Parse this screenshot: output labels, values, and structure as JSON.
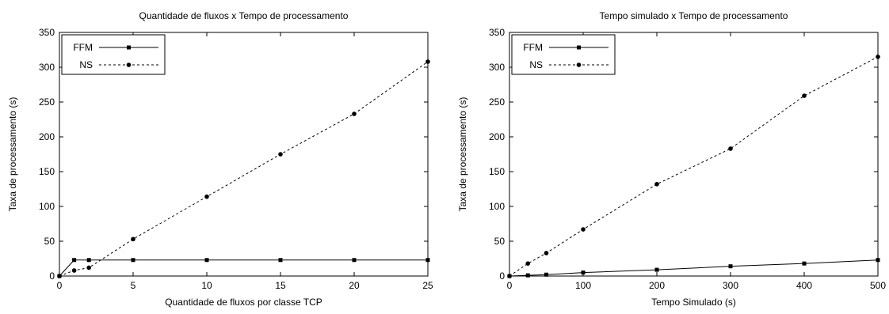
{
  "chart_data": [
    {
      "type": "line",
      "title": "Quantidade de fluxos x Tempo de processamento",
      "xlabel": "Quantidade de fluxos por classe TCP",
      "ylabel": "Taxa de processamento (s)",
      "xlim": [
        0,
        25
      ],
      "ylim": [
        0,
        350
      ],
      "xticks": [
        0,
        5,
        10,
        15,
        20,
        25
      ],
      "yticks": [
        0,
        50,
        100,
        150,
        200,
        250,
        300,
        350
      ],
      "grid": false,
      "legend_position": "top-left",
      "series": [
        {
          "name": "FFM",
          "line": "solid",
          "marker": "square",
          "x": [
            0,
            1,
            2,
            5,
            10,
            15,
            20,
            25
          ],
          "y": [
            0,
            23,
            23,
            23,
            23,
            23,
            23,
            23
          ]
        },
        {
          "name": "NS",
          "line": "dashed",
          "marker": "circle",
          "x": [
            0,
            1,
            2,
            5,
            10,
            15,
            20,
            25
          ],
          "y": [
            0,
            8,
            12,
            53,
            114,
            175,
            233,
            308
          ]
        }
      ]
    },
    {
      "type": "line",
      "title": "Tempo simulado x Tempo de processamento",
      "xlabel": "Tempo Simulado (s)",
      "ylabel": "Taxa de processamento (s)",
      "xlim": [
        0,
        500
      ],
      "ylim": [
        0,
        350
      ],
      "xticks": [
        0,
        100,
        200,
        300,
        400,
        500
      ],
      "yticks": [
        0,
        50,
        100,
        150,
        200,
        250,
        300,
        350
      ],
      "grid": false,
      "legend_position": "top-left",
      "series": [
        {
          "name": "FFM",
          "line": "solid",
          "marker": "square",
          "x": [
            0,
            25,
            50,
            100,
            200,
            300,
            400,
            500
          ],
          "y": [
            0,
            1,
            2,
            5,
            9,
            14,
            18,
            23
          ]
        },
        {
          "name": "NS",
          "line": "dashed",
          "marker": "circle",
          "x": [
            0,
            25,
            50,
            100,
            200,
            300,
            400,
            500
          ],
          "y": [
            0,
            18,
            33,
            67,
            132,
            183,
            259,
            315
          ]
        }
      ]
    }
  ]
}
